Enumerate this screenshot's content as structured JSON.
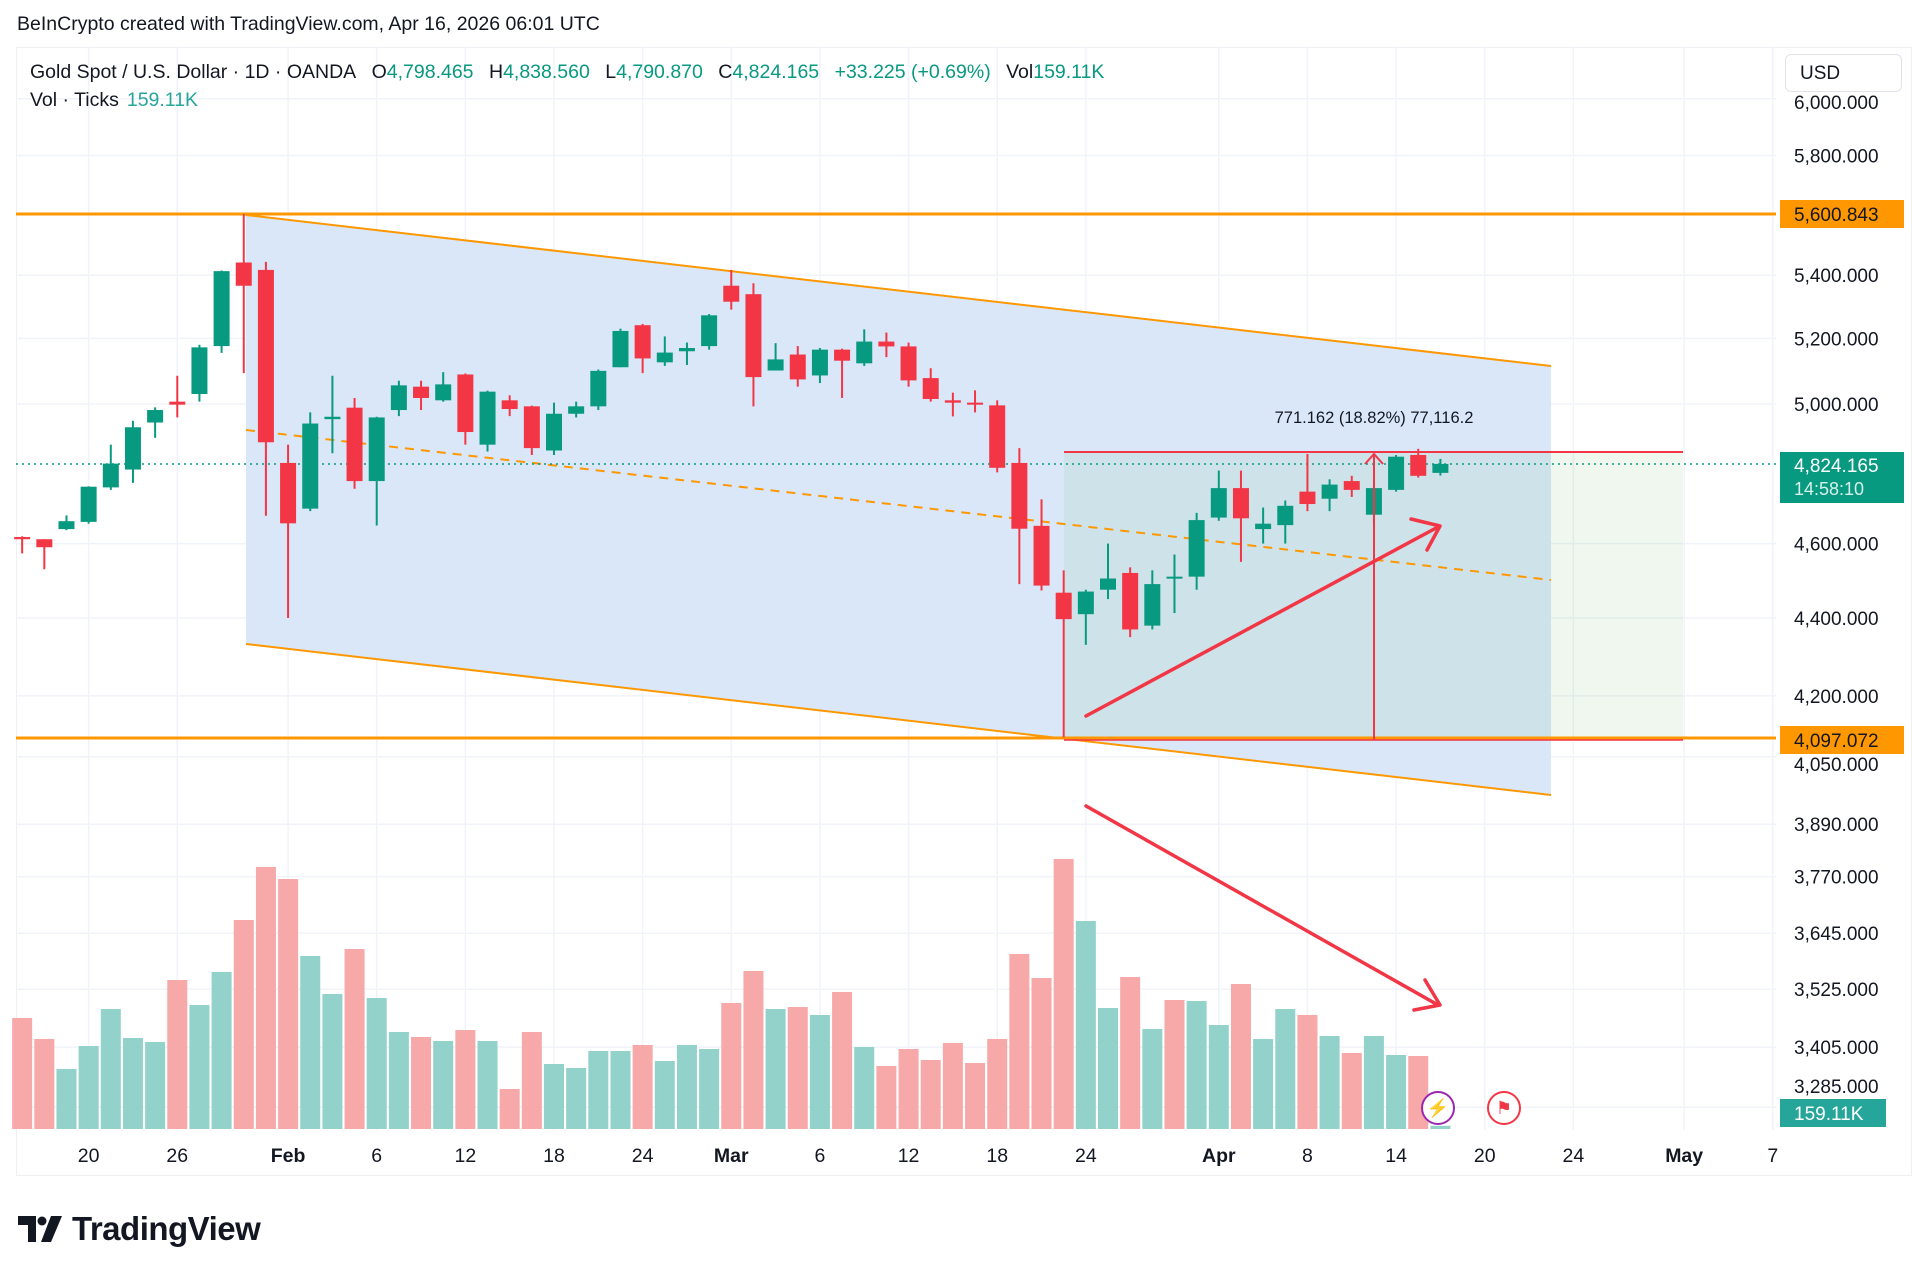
{
  "header": {
    "created_text": "BeInCrypto created with TradingView.com, Apr 16, 2026 06:01 UTC",
    "symbol": "Gold Spot / U.S. Dollar · 1D · OANDA",
    "open_label": "O",
    "open": "4,798.465",
    "high_label": "H",
    "high": "4,838.560",
    "low_label": "L",
    "low": "4,790.870",
    "close_label": "C",
    "close": "4,824.165",
    "change": "+33.225 (+0.69%)",
    "vol_label": "Vol",
    "vol": "159.11K",
    "vol_indicator": "Vol · Ticks",
    "vol_indicator_value": "159.11K"
  },
  "currency": "USD",
  "price_badges": {
    "resistance": "5,600.843",
    "current": "4,824.165",
    "countdown": "14:58:10",
    "support": "4,097.072",
    "volume": "159.11K"
  },
  "measure_label": "771.162 (18.82%) 77,116.2",
  "brand": "TradingView",
  "colors": {
    "up": "#089981",
    "down": "#f23645",
    "accent": "#ff9800",
    "channel": "#dae7f9",
    "vol_up": "#92d2ca",
    "vol_down": "#f7a8a8"
  },
  "chart_data": {
    "type": "candlestick",
    "title": "Gold Spot / U.S. Dollar · 1D · OANDA",
    "yscale": "log",
    "ylim": [
      3285,
      6000
    ],
    "y_ticks": [
      {
        "v": 6000,
        "label": "6,000.000"
      },
      {
        "v": 5800,
        "label": "5,800.000"
      },
      {
        "v": 5400,
        "label": "5,400.000"
      },
      {
        "v": 5200,
        "label": "5,200.000"
      },
      {
        "v": 5000,
        "label": "5,000.000"
      },
      {
        "v": 4600,
        "label": "4,600.000"
      },
      {
        "v": 4400,
        "label": "4,400.000"
      },
      {
        "v": 4200,
        "label": "4,200.000"
      },
      {
        "v": 4050,
        "label": "4,050.000"
      },
      {
        "v": 3890,
        "label": "3,890.000"
      },
      {
        "v": 3770,
        "label": "3,770.000"
      },
      {
        "v": 3645,
        "label": "3,645.000"
      },
      {
        "v": 3525,
        "label": "3,525.000"
      },
      {
        "v": 3405,
        "label": "3,405.000"
      },
      {
        "v": 3285,
        "label": "3,285.000"
      }
    ],
    "x_ticks": [
      {
        "i": 3,
        "label": "20",
        "bold": false
      },
      {
        "i": 7,
        "label": "26",
        "bold": false
      },
      {
        "i": 12,
        "label": "Feb",
        "bold": true
      },
      {
        "i": 16,
        "label": "6",
        "bold": false
      },
      {
        "i": 20,
        "label": "12",
        "bold": false
      },
      {
        "i": 24,
        "label": "18",
        "bold": false
      },
      {
        "i": 28,
        "label": "24",
        "bold": false
      },
      {
        "i": 32,
        "label": "Mar",
        "bold": true
      },
      {
        "i": 36,
        "label": "6",
        "bold": false
      },
      {
        "i": 40,
        "label": "12",
        "bold": false
      },
      {
        "i": 44,
        "label": "18",
        "bold": false
      },
      {
        "i": 48,
        "label": "24",
        "bold": false
      },
      {
        "i": 54,
        "label": "Apr",
        "bold": true
      },
      {
        "i": 58,
        "label": "8",
        "bold": false
      },
      {
        "i": 62,
        "label": "14",
        "bold": false
      },
      {
        "i": 66,
        "label": "20",
        "bold": false
      },
      {
        "i": 70,
        "label": "24",
        "bold": false
      },
      {
        "i": 75,
        "label": "May",
        "bold": true
      },
      {
        "i": 79,
        "label": "7",
        "bold": false
      }
    ],
    "volume_ylim": [
      0,
      16950
    ],
    "candles": [
      {
        "d": "Jan 15",
        "o": 4618,
        "h": 4620,
        "l": 4573,
        "c": 4612,
        "v": 5550,
        "vd": "down"
      },
      {
        "d": "Jan 16",
        "o": 4612,
        "h": 4612,
        "l": 4530,
        "c": 4590,
        "v": 4500,
        "vd": "down"
      },
      {
        "d": "Jan 19",
        "o": 4640,
        "h": 4678,
        "l": 4637,
        "c": 4662,
        "v": 3000,
        "vd": "up"
      },
      {
        "d": "Jan 20",
        "o": 4660,
        "h": 4760,
        "l": 4655,
        "c": 4759,
        "v": 4150,
        "vd": "up"
      },
      {
        "d": "Jan 21",
        "o": 4757,
        "h": 4880,
        "l": 4750,
        "c": 4825,
        "v": 6000,
        "vd": "up"
      },
      {
        "d": "Jan 22",
        "o": 4808,
        "h": 4950,
        "l": 4770,
        "c": 4931,
        "v": 4550,
        "vd": "up"
      },
      {
        "d": "Jan 23",
        "o": 4945,
        "h": 4990,
        "l": 4900,
        "c": 4982,
        "v": 4350,
        "vd": "up"
      },
      {
        "d": "Jan 26",
        "o": 5007,
        "h": 5085,
        "l": 4960,
        "c": 4998,
        "v": 7450,
        "vd": "down"
      },
      {
        "d": "Jan 27",
        "o": 5030,
        "h": 5180,
        "l": 5007,
        "c": 5172,
        "v": 6200,
        "vd": "up"
      },
      {
        "d": "Jan 28",
        "o": 5176,
        "h": 5415,
        "l": 5155,
        "c": 5413,
        "v": 7850,
        "vd": "up"
      },
      {
        "d": "Jan 29",
        "o": 5441,
        "h": 5600.843,
        "l": 5093,
        "c": 5366,
        "v": 10450,
        "vd": "down"
      },
      {
        "d": "Jan 30",
        "o": 5417,
        "h": 5443,
        "l": 4677,
        "c": 4887,
        "v": 13100,
        "vd": "down"
      },
      {
        "d": "Feb 2",
        "o": 4827,
        "h": 4880,
        "l": 4400,
        "c": 4656,
        "v": 12500,
        "vd": "down"
      },
      {
        "d": "Feb 3",
        "o": 4697,
        "h": 4975,
        "l": 4690,
        "c": 4942,
        "v": 8650,
        "vd": "up"
      },
      {
        "d": "Feb 4",
        "o": 4955,
        "h": 5085,
        "l": 4855,
        "c": 4962,
        "v": 6750,
        "vd": "up"
      },
      {
        "d": "Feb 5",
        "o": 4989,
        "h": 5018,
        "l": 4753,
        "c": 4775,
        "v": 9000,
        "vd": "down"
      },
      {
        "d": "Feb 6",
        "o": 4775,
        "h": 4962,
        "l": 4650,
        "c": 4960,
        "v": 6550,
        "vd": "up"
      },
      {
        "d": "Feb 9",
        "o": 4982,
        "h": 5070,
        "l": 4964,
        "c": 5056,
        "v": 4850,
        "vd": "up"
      },
      {
        "d": "Feb 10",
        "o": 5052,
        "h": 5070,
        "l": 4982,
        "c": 5018,
        "v": 4600,
        "vd": "down"
      },
      {
        "d": "Feb 11",
        "o": 5011,
        "h": 5096,
        "l": 5007,
        "c": 5059,
        "v": 4400,
        "vd": "up"
      },
      {
        "d": "Feb 12",
        "o": 5089,
        "h": 5092,
        "l": 4880,
        "c": 4917,
        "v": 4950,
        "vd": "down"
      },
      {
        "d": "Feb 13",
        "o": 4880,
        "h": 5040,
        "l": 4860,
        "c": 5037,
        "v": 4400,
        "vd": "up"
      },
      {
        "d": "Feb 16",
        "o": 5011,
        "h": 5026,
        "l": 4964,
        "c": 4985,
        "v": 2000,
        "vd": "down"
      },
      {
        "d": "Feb 17",
        "o": 4993,
        "h": 4995,
        "l": 4850,
        "c": 4870,
        "v": 4850,
        "vd": "down"
      },
      {
        "d": "Feb 18",
        "o": 4863,
        "h": 5004,
        "l": 4850,
        "c": 4971,
        "v": 3250,
        "vd": "up"
      },
      {
        "d": "Feb 19",
        "o": 4971,
        "h": 5007,
        "l": 4960,
        "c": 4993,
        "v": 3050,
        "vd": "up"
      },
      {
        "d": "Feb 20",
        "o": 4993,
        "h": 5104,
        "l": 4982,
        "c": 5100,
        "v": 3900,
        "vd": "up"
      },
      {
        "d": "Feb 23",
        "o": 5111,
        "h": 5230,
        "l": 5111,
        "c": 5223,
        "v": 3900,
        "vd": "up"
      },
      {
        "d": "Feb 24",
        "o": 5241,
        "h": 5245,
        "l": 5093,
        "c": 5138,
        "v": 4200,
        "vd": "down"
      },
      {
        "d": "Feb 25",
        "o": 5126,
        "h": 5206,
        "l": 5115,
        "c": 5156,
        "v": 3400,
        "vd": "up"
      },
      {
        "d": "Feb 26",
        "o": 5160,
        "h": 5187,
        "l": 5118,
        "c": 5170,
        "v": 4200,
        "vd": "up"
      },
      {
        "d": "Feb 27",
        "o": 5176,
        "h": 5276,
        "l": 5165,
        "c": 5272,
        "v": 4000,
        "vd": "up"
      },
      {
        "d": "Mar 2",
        "o": 5366,
        "h": 5417,
        "l": 5290,
        "c": 5315,
        "v": 6300,
        "vd": "down"
      },
      {
        "d": "Mar 3",
        "o": 5339,
        "h": 5374,
        "l": 4993,
        "c": 5081,
        "v": 7900,
        "vd": "down"
      },
      {
        "d": "Mar 4",
        "o": 5101,
        "h": 5185,
        "l": 5101,
        "c": 5135,
        "v": 6000,
        "vd": "up"
      },
      {
        "d": "Mar 5",
        "o": 5150,
        "h": 5176,
        "l": 5052,
        "c": 5074,
        "v": 6100,
        "vd": "down"
      },
      {
        "d": "Mar 6",
        "o": 5086,
        "h": 5170,
        "l": 5063,
        "c": 5165,
        "v": 5700,
        "vd": "up"
      },
      {
        "d": "Mar 9",
        "o": 5165,
        "h": 5168,
        "l": 5018,
        "c": 5131,
        "v": 6850,
        "vd": "down"
      },
      {
        "d": "Mar 10",
        "o": 5123,
        "h": 5228,
        "l": 5115,
        "c": 5190,
        "v": 4100,
        "vd": "up"
      },
      {
        "d": "Mar 11",
        "o": 5190,
        "h": 5218,
        "l": 5142,
        "c": 5175,
        "v": 3150,
        "vd": "down"
      },
      {
        "d": "Mar 12",
        "o": 5175,
        "h": 5187,
        "l": 5052,
        "c": 5071,
        "v": 4000,
        "vd": "down"
      },
      {
        "d": "Mar 13",
        "o": 5078,
        "h": 5108,
        "l": 5007,
        "c": 5015,
        "v": 3450,
        "vd": "down"
      },
      {
        "d": "Mar 16",
        "o": 5011,
        "h": 5034,
        "l": 4963,
        "c": 5004,
        "v": 4300,
        "vd": "down"
      },
      {
        "d": "Mar 17",
        "o": 5004,
        "h": 5041,
        "l": 4975,
        "c": 4998,
        "v": 3300,
        "vd": "down"
      },
      {
        "d": "Mar 18",
        "o": 4996,
        "h": 5011,
        "l": 4800,
        "c": 4813,
        "v": 4500,
        "vd": "down"
      },
      {
        "d": "Mar 19",
        "o": 4827,
        "h": 4870,
        "l": 4490,
        "c": 4641,
        "v": 8750,
        "vd": "down"
      },
      {
        "d": "Mar 20",
        "o": 4649,
        "h": 4723,
        "l": 4473,
        "c": 4486,
        "v": 7550,
        "vd": "down"
      },
      {
        "d": "Mar 23",
        "o": 4467,
        "h": 4527,
        "l": 4097.072,
        "c": 4397,
        "v": 13500,
        "vd": "down"
      },
      {
        "d": "Mar 24",
        "o": 4410,
        "h": 4475,
        "l": 4330,
        "c": 4470,
        "v": 10400,
        "vd": "up"
      },
      {
        "d": "Mar 25",
        "o": 4475,
        "h": 4600,
        "l": 4450,
        "c": 4505,
        "v": 6050,
        "vd": "up"
      },
      {
        "d": "Mar 26",
        "o": 4520,
        "h": 4535,
        "l": 4350,
        "c": 4370,
        "v": 7600,
        "vd": "down"
      },
      {
        "d": "Mar 27",
        "o": 4380,
        "h": 4527,
        "l": 4370,
        "c": 4490,
        "v": 5000,
        "vd": "up"
      },
      {
        "d": "Mar 30",
        "o": 4505,
        "h": 4570,
        "l": 4413,
        "c": 4510,
        "v": 6450,
        "vd": "down"
      },
      {
        "d": "Mar 31",
        "o": 4510,
        "h": 4685,
        "l": 4475,
        "c": 4665,
        "v": 6400,
        "vd": "up"
      },
      {
        "d": "Apr 1",
        "o": 4672,
        "h": 4805,
        "l": 4663,
        "c": 4755,
        "v": 5200,
        "vd": "up"
      },
      {
        "d": "Apr 2",
        "o": 4755,
        "h": 4805,
        "l": 4550,
        "c": 4670,
        "v": 7250,
        "vd": "down"
      },
      {
        "d": "Apr 6",
        "o": 4640,
        "h": 4700,
        "l": 4600,
        "c": 4655,
        "v": 4500,
        "vd": "up"
      },
      {
        "d": "Apr 7",
        "o": 4651,
        "h": 4720,
        "l": 4600,
        "c": 4705,
        "v": 6000,
        "vd": "up"
      },
      {
        "d": "Apr 8",
        "o": 4745,
        "h": 4853,
        "l": 4690,
        "c": 4710,
        "v": 5700,
        "vd": "down"
      },
      {
        "d": "Apr 9",
        "o": 4725,
        "h": 4780,
        "l": 4690,
        "c": 4765,
        "v": 4650,
        "vd": "up"
      },
      {
        "d": "Apr 10",
        "o": 4775,
        "h": 4790,
        "l": 4730,
        "c": 4750,
        "v": 3800,
        "vd": "down"
      },
      {
        "d": "Apr 13",
        "o": 4680,
        "h": 4760,
        "l": 4655,
        "c": 4755,
        "v": 4650,
        "vd": "up"
      },
      {
        "d": "Apr 14",
        "o": 4750,
        "h": 4850,
        "l": 4745,
        "c": 4845,
        "v": 3700,
        "vd": "up"
      },
      {
        "d": "Apr 15",
        "o": 4850,
        "h": 4868,
        "l": 4785,
        "c": 4790,
        "v": 3650,
        "vd": "down"
      },
      {
        "d": "Apr 16",
        "o": 4798.465,
        "h": 4838.56,
        "l": 4790.87,
        "c": 4824.165,
        "v": 159.11,
        "vd": "up"
      }
    ]
  }
}
